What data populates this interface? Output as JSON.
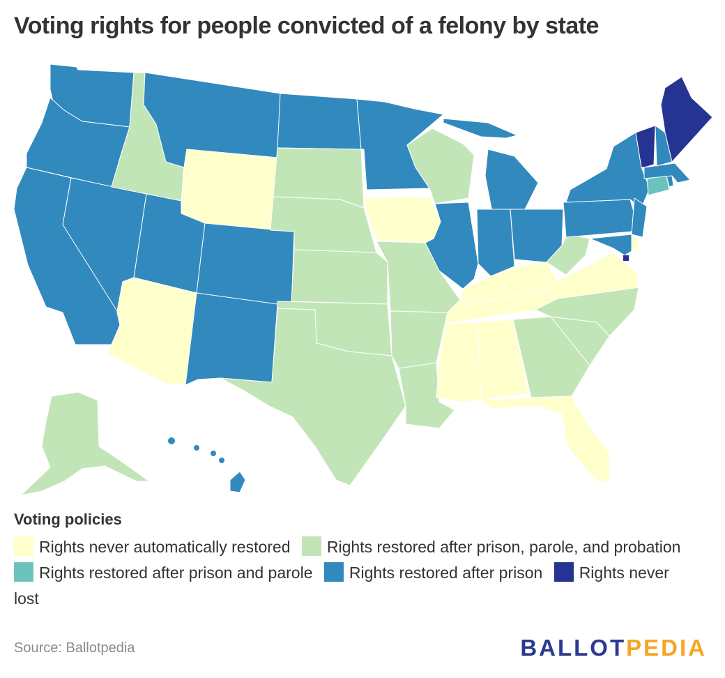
{
  "title": "Voting rights for people convicted of a felony by state",
  "colors": {
    "never_restored": "#ffffcc",
    "after_probation": "#c2e5b7",
    "after_parole": "#6cc3bd",
    "after_prison": "#3289bd",
    "never_lost": "#253493",
    "logo_primary": "#2b3990",
    "logo_accent": "#f5a623"
  },
  "legend": {
    "title": "Voting policies",
    "items": [
      {
        "key": "never_restored",
        "label": "Rights never automatically restored"
      },
      {
        "key": "after_probation",
        "label": "Rights restored after prison, parole, and probation"
      },
      {
        "key": "after_parole",
        "label": "Rights restored after prison and parole"
      },
      {
        "key": "after_prison",
        "label": "Rights restored after prison"
      },
      {
        "key": "never_lost",
        "label": "Rights never lost"
      }
    ]
  },
  "states": {
    "WA": "after_prison",
    "OR": "after_prison",
    "CA": "after_prison",
    "NV": "after_prison",
    "ID": "after_probation",
    "MT": "after_prison",
    "WY": "never_restored",
    "UT": "after_prison",
    "AZ": "never_restored",
    "CO": "after_prison",
    "NM": "after_prison",
    "ND": "after_prison",
    "SD": "after_probation",
    "NE": "after_probation",
    "KS": "after_probation",
    "OK": "after_probation",
    "TX": "after_probation",
    "MN": "after_prison",
    "IA": "never_restored",
    "MO": "after_probation",
    "AR": "after_probation",
    "LA": "after_probation",
    "WI": "after_probation",
    "IL": "after_prison",
    "MI": "after_prison",
    "IN": "after_prison",
    "OH": "after_prison",
    "KY": "never_restored",
    "TN": "never_restored",
    "MS": "never_restored",
    "AL": "never_restored",
    "FL": "never_restored",
    "GA": "after_probation",
    "SC": "after_probation",
    "NC": "after_probation",
    "VA": "never_restored",
    "WV": "after_probation",
    "PA": "after_prison",
    "NY": "after_prison",
    "NJ": "after_prison",
    "DE": "never_restored",
    "MD": "after_prison",
    "CT": "after_parole",
    "RI": "after_prison",
    "MA": "after_prison",
    "NH": "after_prison",
    "VT": "never_lost",
    "ME": "never_lost",
    "AK": "after_probation",
    "HI": "after_prison",
    "DC": "never_lost"
  },
  "source": "Source: Ballotpedia",
  "logo": {
    "part1": "BALLOT",
    "part2": "PEDIA"
  }
}
